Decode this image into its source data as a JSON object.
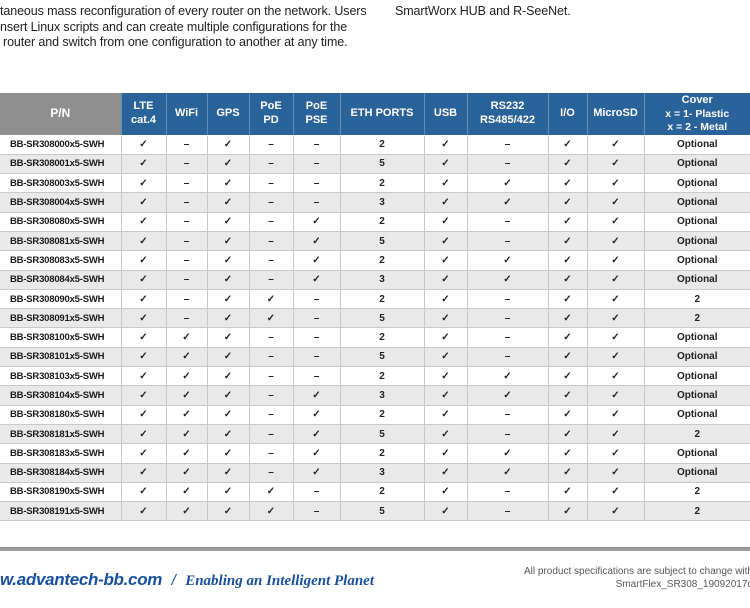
{
  "intro": {
    "left_lines": [
      "taneous mass reconfiguration of every router on the network. Users",
      "nsert Linux scripts and can create multiple configurations for the",
      "router and switch from one configuration to another at any time."
    ],
    "right_line": "SmartWorx HUB and R-SeeNet."
  },
  "table": {
    "columns": [
      {
        "id": "pn",
        "lines": [
          "P/N"
        ]
      },
      {
        "id": "lte-cat4",
        "lines": [
          "LTE",
          "cat.4"
        ]
      },
      {
        "id": "wifi",
        "lines": [
          "WiFi"
        ]
      },
      {
        "id": "gps",
        "lines": [
          "GPS"
        ]
      },
      {
        "id": "poe-pd",
        "lines": [
          "PoE",
          "PD"
        ]
      },
      {
        "id": "poe-pse",
        "lines": [
          "PoE",
          "PSE"
        ]
      },
      {
        "id": "eth-ports",
        "lines": [
          "ETH PORTS"
        ]
      },
      {
        "id": "usb",
        "lines": [
          "USB"
        ]
      },
      {
        "id": "rs232",
        "lines": [
          "RS232",
          "RS485/422"
        ]
      },
      {
        "id": "io",
        "lines": [
          "I/O"
        ]
      },
      {
        "id": "microsd",
        "lines": [
          "MicroSD"
        ]
      },
      {
        "id": "cover",
        "lines": [
          "Cover",
          "x = 1- Plastic",
          "x = 2 - Metal"
        ]
      }
    ],
    "rows": [
      [
        "BB-SR308000x5-SWH",
        "✓",
        "–",
        "✓",
        "–",
        "–",
        "2",
        "✓",
        "–",
        "✓",
        "✓",
        "Optional"
      ],
      [
        "BB-SR308001x5-SWH",
        "✓",
        "–",
        "✓",
        "–",
        "–",
        "5",
        "✓",
        "–",
        "✓",
        "✓",
        "Optional"
      ],
      [
        "BB-SR308003x5-SWH",
        "✓",
        "–",
        "✓",
        "–",
        "–",
        "2",
        "✓",
        "✓",
        "✓",
        "✓",
        "Optional"
      ],
      [
        "BB-SR308004x5-SWH",
        "✓",
        "–",
        "✓",
        "–",
        "–",
        "3",
        "✓",
        "✓",
        "✓",
        "✓",
        "Optional"
      ],
      [
        "BB-SR308080x5-SWH",
        "✓",
        "–",
        "✓",
        "–",
        "✓",
        "2",
        "✓",
        "–",
        "✓",
        "✓",
        "Optional"
      ],
      [
        "BB-SR308081x5-SWH",
        "✓",
        "–",
        "✓",
        "–",
        "✓",
        "5",
        "✓",
        "–",
        "✓",
        "✓",
        "Optional"
      ],
      [
        "BB-SR308083x5-SWH",
        "✓",
        "–",
        "✓",
        "–",
        "✓",
        "2",
        "✓",
        "✓",
        "✓",
        "✓",
        "Optional"
      ],
      [
        "BB-SR308084x5-SWH",
        "✓",
        "–",
        "✓",
        "–",
        "✓",
        "3",
        "✓",
        "✓",
        "✓",
        "✓",
        "Optional"
      ],
      [
        "BB-SR308090x5-SWH",
        "✓",
        "–",
        "✓",
        "✓",
        "–",
        "2",
        "✓",
        "–",
        "✓",
        "✓",
        "2"
      ],
      [
        "BB-SR308091x5-SWH",
        "✓",
        "–",
        "✓",
        "✓",
        "–",
        "5",
        "✓",
        "–",
        "✓",
        "✓",
        "2"
      ],
      [
        "BB-SR308100x5-SWH",
        "✓",
        "✓",
        "✓",
        "–",
        "–",
        "2",
        "✓",
        "–",
        "✓",
        "✓",
        "Optional"
      ],
      [
        "BB-SR308101x5-SWH",
        "✓",
        "✓",
        "✓",
        "–",
        "–",
        "5",
        "✓",
        "–",
        "✓",
        "✓",
        "Optional"
      ],
      [
        "BB-SR308103x5-SWH",
        "✓",
        "✓",
        "✓",
        "–",
        "–",
        "2",
        "✓",
        "✓",
        "✓",
        "✓",
        "Optional"
      ],
      [
        "BB-SR308104x5-SWH",
        "✓",
        "✓",
        "✓",
        "–",
        "✓",
        "3",
        "✓",
        "✓",
        "✓",
        "✓",
        "Optional"
      ],
      [
        "BB-SR308180x5-SWH",
        "✓",
        "✓",
        "✓",
        "–",
        "✓",
        "2",
        "✓",
        "–",
        "✓",
        "✓",
        "Optional"
      ],
      [
        "BB-SR308181x5-SWH",
        "✓",
        "✓",
        "✓",
        "–",
        "✓",
        "5",
        "✓",
        "–",
        "✓",
        "✓",
        "2"
      ],
      [
        "BB-SR308183x5-SWH",
        "✓",
        "✓",
        "✓",
        "–",
        "✓",
        "2",
        "✓",
        "✓",
        "✓",
        "✓",
        "Optional"
      ],
      [
        "BB-SR308184x5-SWH",
        "✓",
        "✓",
        "✓",
        "–",
        "✓",
        "3",
        "✓",
        "✓",
        "✓",
        "✓",
        "Optional"
      ],
      [
        "BB-SR308190x5-SWH",
        "✓",
        "✓",
        "✓",
        "✓",
        "–",
        "2",
        "✓",
        "–",
        "✓",
        "✓",
        "2"
      ],
      [
        "BB-SR308191x5-SWH",
        "✓",
        "✓",
        "✓",
        "✓",
        "–",
        "5",
        "✓",
        "–",
        "✓",
        "✓",
        "2"
      ]
    ]
  },
  "footer": {
    "website": "w.advantech-bb.com",
    "separator": "/",
    "tagline": "Enabling an Intelligent Planet",
    "disclaimer_line1": "All product specifications are subject to change with",
    "disclaimer_line2": "SmartFlex_SR308_19092017d"
  },
  "colors": {
    "header_blue": "#2a6399",
    "pn_header_gray": "#8f8f8f",
    "row_stripe": "#e9e9e9",
    "cell_border": "#c9c9c9",
    "footer_blue": "#17519e",
    "divider_bar_gray": "#9e9e9e"
  }
}
